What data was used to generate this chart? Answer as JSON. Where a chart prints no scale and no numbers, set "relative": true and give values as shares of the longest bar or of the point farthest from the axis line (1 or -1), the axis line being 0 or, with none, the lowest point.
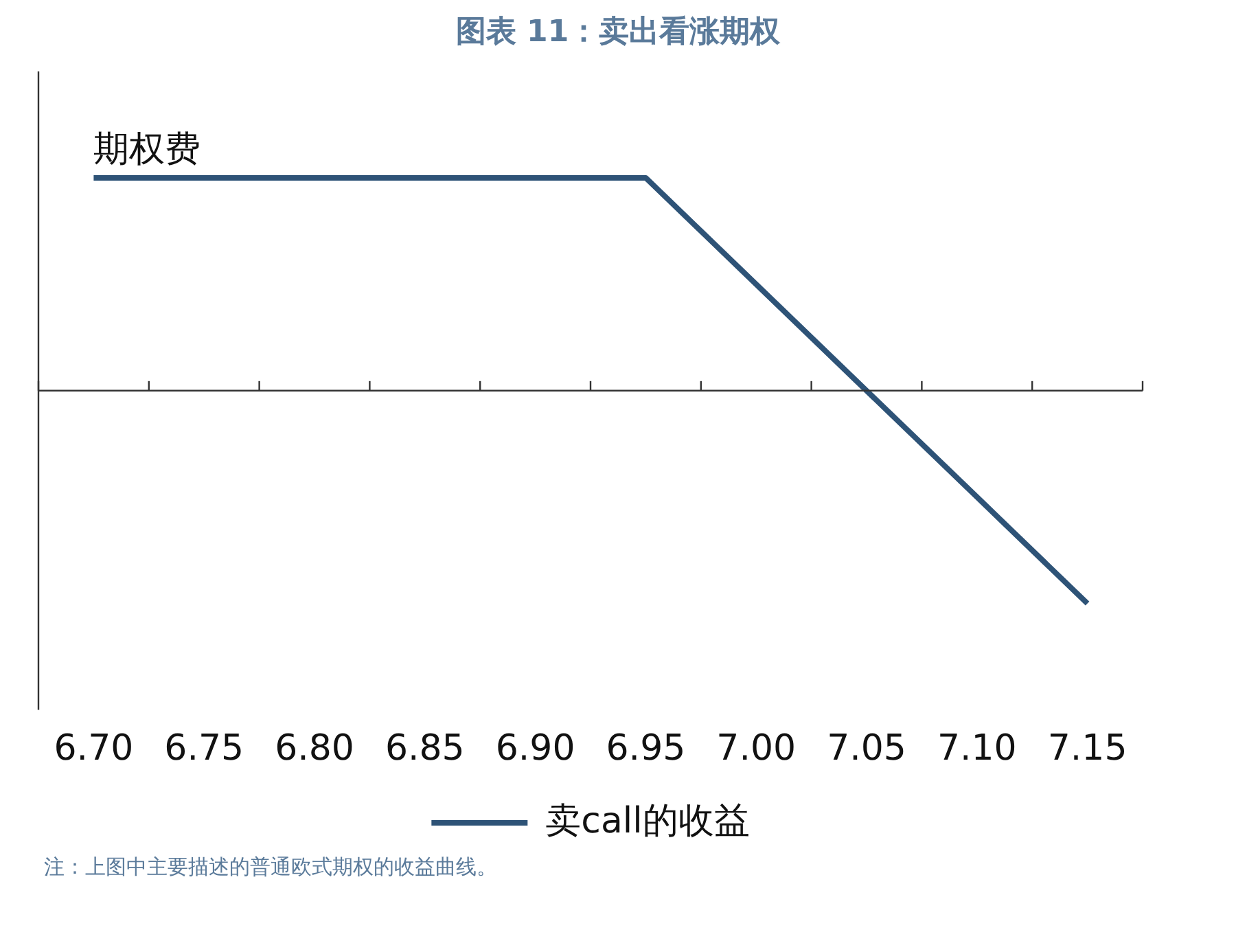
{
  "chart_data": {
    "type": "line",
    "title": "图表 11：卖出看涨期权",
    "categories": [
      "6.70",
      "6.75",
      "6.80",
      "6.85",
      "6.90",
      "6.95",
      "7.00",
      "7.05",
      "7.10",
      "7.15"
    ],
    "series": [
      {
        "name": "卖call的收益",
        "color": "#2e5377",
        "values": [
          1,
          1,
          1,
          1,
          1,
          1,
          0.5,
          0,
          -0.5,
          -1
        ]
      }
    ],
    "relative": true,
    "grid": false,
    "legend": "bottom",
    "marker": "none",
    "line_style": "solid",
    "annotations": [
      {
        "text": "期权费",
        "x": "6.70",
        "y": 1
      },
      "注：上图中主要描述的普通欧式期权的收益曲线。"
    ]
  }
}
